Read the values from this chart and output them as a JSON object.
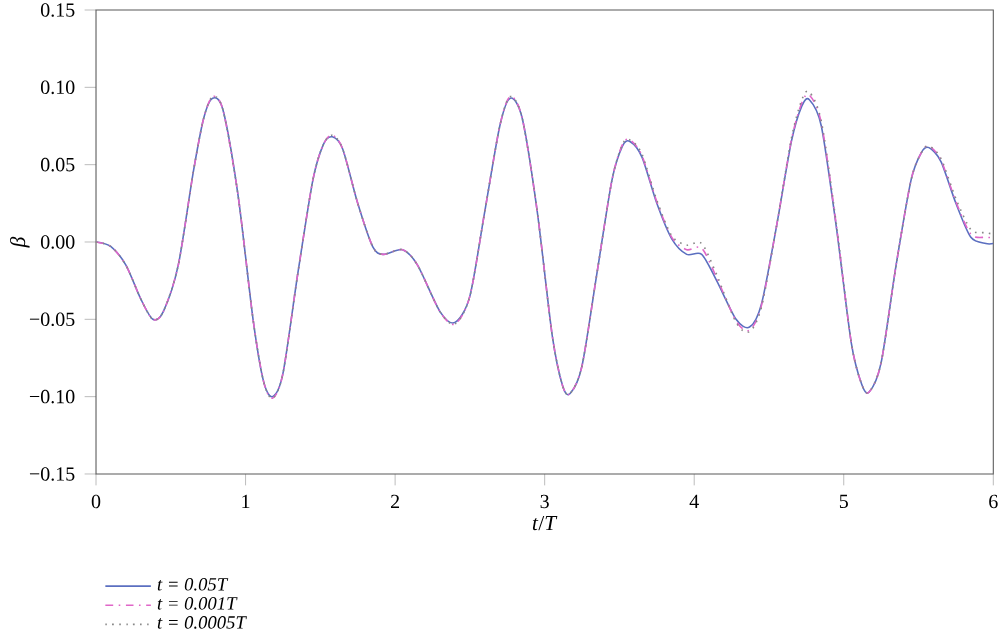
{
  "chart_data": {
    "type": "line",
    "xlabel": "*t*/*T*",
    "ylabel": "β",
    "xlim": [
      0,
      6
    ],
    "ylim": [
      -0.15,
      0.15
    ],
    "xticks": [
      0,
      1,
      2,
      3,
      4,
      5,
      6
    ],
    "yticks": [
      {
        "value": -0.15,
        "label": "−0.15"
      },
      {
        "value": -0.1,
        "label": "−0.10"
      },
      {
        "value": -0.05,
        "label": "−0.05"
      },
      {
        "value": 0,
        "label": "0.00"
      },
      {
        "value": 0.05,
        "label": "0.05"
      },
      {
        "value": 0.1,
        "label": "0.10"
      },
      {
        "value": 0.15,
        "label": "0.15"
      }
    ],
    "x": [
      0,
      0.1,
      0.2,
      0.3,
      0.38,
      0.45,
      0.55,
      0.65,
      0.72,
      0.78,
      0.85,
      0.95,
      1.05,
      1.12,
      1.18,
      1.25,
      1.35,
      1.45,
      1.52,
      1.58,
      1.65,
      1.75,
      1.85,
      1.92,
      2.05,
      2.15,
      2.3,
      2.4,
      2.5,
      2.6,
      2.7,
      2.77,
      2.85,
      2.95,
      3.05,
      3.12,
      3.17,
      3.25,
      3.35,
      3.45,
      3.52,
      3.57,
      3.65,
      3.75,
      3.85,
      3.95,
      4.05,
      4.15,
      4.28,
      4.37,
      4.45,
      4.55,
      4.65,
      4.72,
      4.77,
      4.85,
      4.95,
      5.05,
      5.12,
      5.17,
      5.25,
      5.35,
      5.45,
      5.52,
      5.57,
      5.65,
      5.75,
      5.85,
      5.95,
      6.0
    ],
    "series": [
      {
        "name": "t = 0.05T",
        "color": "#5b6fc0",
        "line_style": "solid",
        "values": [
          0,
          -0.003,
          -0.015,
          -0.037,
          -0.05,
          -0.045,
          -0.015,
          0.045,
          0.08,
          0.093,
          0.085,
          0.03,
          -0.05,
          -0.09,
          -0.1,
          -0.085,
          -0.02,
          0.04,
          0.063,
          0.068,
          0.06,
          0.025,
          -0.003,
          -0.008,
          -0.005,
          -0.015,
          -0.045,
          -0.052,
          -0.035,
          0.02,
          0.075,
          0.093,
          0.08,
          0.02,
          -0.06,
          -0.093,
          -0.098,
          -0.08,
          -0.02,
          0.04,
          0.062,
          0.065,
          0.055,
          0.025,
          0.002,
          -0.008,
          -0.008,
          -0.025,
          -0.05,
          -0.055,
          -0.04,
          0.01,
          0.065,
          0.088,
          0.092,
          0.075,
          0.01,
          -0.065,
          -0.092,
          -0.097,
          -0.078,
          -0.015,
          0.04,
          0.058,
          0.061,
          0.052,
          0.025,
          0.003,
          -0.001,
          -0.001
        ]
      },
      {
        "name": "t = 0.001T",
        "color": "#e066c8",
        "line_style": "dashed",
        "values": [
          0,
          -0.003,
          -0.015,
          -0.037,
          -0.05,
          -0.045,
          -0.015,
          0.045,
          0.08,
          0.094,
          0.085,
          0.03,
          -0.05,
          -0.09,
          -0.101,
          -0.085,
          -0.02,
          0.04,
          0.063,
          0.069,
          0.06,
          0.025,
          -0.003,
          -0.008,
          -0.005,
          -0.015,
          -0.045,
          -0.053,
          -0.035,
          0.02,
          0.075,
          0.094,
          0.08,
          0.02,
          -0.06,
          -0.093,
          -0.098,
          -0.08,
          -0.02,
          0.04,
          0.063,
          0.066,
          0.056,
          0.026,
          0.003,
          -0.005,
          -0.004,
          -0.023,
          -0.051,
          -0.057,
          -0.041,
          0.01,
          0.066,
          0.09,
          0.095,
          0.077,
          0.011,
          -0.065,
          -0.092,
          -0.097,
          -0.078,
          -0.015,
          0.04,
          0.058,
          0.062,
          0.053,
          0.026,
          0.005,
          0.003,
          0.003
        ]
      },
      {
        "name": "t = 0.0005T",
        "color": "#888888",
        "line_style": "dotted",
        "values": [
          0,
          -0.003,
          -0.015,
          -0.037,
          -0.05,
          -0.045,
          -0.015,
          0.045,
          0.08,
          0.094,
          0.085,
          0.03,
          -0.05,
          -0.09,
          -0.101,
          -0.085,
          -0.02,
          0.04,
          0.063,
          0.069,
          0.06,
          0.025,
          -0.003,
          -0.008,
          -0.005,
          -0.015,
          -0.045,
          -0.053,
          -0.035,
          0.02,
          0.075,
          0.094,
          0.08,
          0.02,
          -0.06,
          -0.093,
          -0.098,
          -0.08,
          -0.02,
          0.04,
          0.063,
          0.066,
          0.057,
          0.027,
          0.004,
          -0.002,
          -0.001,
          -0.021,
          -0.052,
          -0.058,
          -0.042,
          0.01,
          0.067,
          0.092,
          0.097,
          0.078,
          0.012,
          -0.065,
          -0.092,
          -0.097,
          -0.078,
          -0.015,
          0.04,
          0.058,
          0.062,
          0.054,
          0.028,
          0.008,
          0.006,
          0.005
        ]
      }
    ],
    "legend": "bottom left",
    "grid": false
  }
}
